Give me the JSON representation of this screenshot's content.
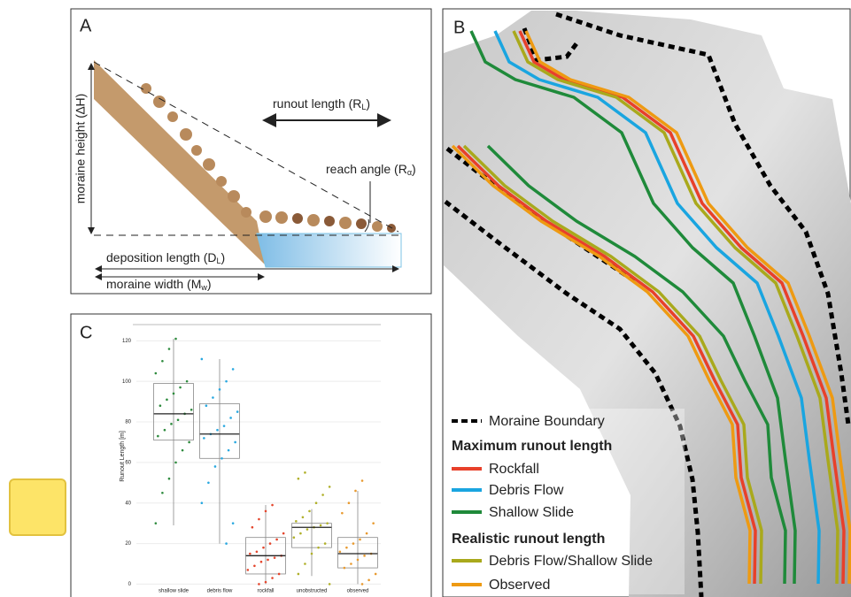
{
  "panel_a": {
    "label": "A",
    "height": "moraine height (∆H)",
    "runout": {
      "text": "runout length (R",
      "sub": "L",
      "close": ")"
    },
    "reach": {
      "text": "reach angle (R",
      "sub": "α",
      "close": ")"
    },
    "deposition": {
      "text": "deposition length (D",
      "sub": "L",
      "close": ")"
    },
    "width": {
      "text": "moraine width (M",
      "sub": "w",
      "close": ")"
    }
  },
  "panel_b": {
    "label": "B",
    "legend": {
      "boundary": "Moraine Boundary",
      "max_title": "Maximum runout length",
      "max_items": [
        {
          "name": "Rockfall",
          "color": "#e8402a"
        },
        {
          "name": "Debris Flow",
          "color": "#1aa5e0"
        },
        {
          "name": "Shallow Slide",
          "color": "#1f8a3a"
        }
      ],
      "real_title": "Realistic runout length",
      "real_items": [
        {
          "name": "Debris Flow/Shallow Slide",
          "color": "#a9a91c"
        },
        {
          "name": "Observed",
          "color": "#ee9a12"
        }
      ]
    }
  },
  "chart_data": {
    "type": "box",
    "label": "C",
    "ylabel": "Runout Length [m]",
    "categories": [
      "shallow slide",
      "debris flow",
      "rockfall",
      "unobstructed",
      "observed"
    ],
    "colors": [
      "#2e8b3e",
      "#29a8e0",
      "#e4452c",
      "#b0b02a",
      "#e89a30"
    ],
    "boxes": [
      {
        "min": 29,
        "q1": 71,
        "median": 84,
        "q3": 99,
        "max": 121
      },
      {
        "min": 20,
        "q1": 62,
        "median": 74,
        "q3": 89,
        "max": 111
      },
      {
        "min": 0,
        "q1": 5,
        "median": 14,
        "q3": 23,
        "max": 39
      },
      {
        "min": 4,
        "q1": 18,
        "median": 28,
        "q3": 30,
        "max": 37
      },
      {
        "min": 0,
        "q1": 8,
        "median": 15,
        "q3": 23,
        "max": 46
      }
    ],
    "points": [
      [
        30,
        45,
        52,
        60,
        66,
        70,
        73,
        76,
        79,
        81,
        84,
        86,
        88,
        91,
        94,
        97,
        100,
        104,
        110,
        116,
        121
      ],
      [
        20,
        30,
        40,
        50,
        58,
        62,
        66,
        70,
        72,
        74,
        76,
        78,
        82,
        85,
        88,
        92,
        96,
        100,
        106,
        111
      ],
      [
        0,
        1,
        3,
        5,
        7,
        9,
        11,
        12,
        13,
        14,
        15,
        16,
        18,
        20,
        22,
        25,
        28,
        32,
        36,
        39
      ],
      [
        0,
        5,
        10,
        15,
        18,
        20,
        23,
        25,
        27,
        28,
        29,
        30,
        31,
        33,
        36,
        40,
        44,
        48,
        52,
        55
      ],
      [
        0,
        2,
        5,
        8,
        10,
        12,
        14,
        15,
        16,
        18,
        20,
        22,
        25,
        30,
        35,
        40,
        46,
        51
      ]
    ],
    "ylim": [
      -2,
      128
    ],
    "yticks": [
      0,
      20,
      40,
      60,
      80,
      100,
      120
    ],
    "grid": true
  }
}
